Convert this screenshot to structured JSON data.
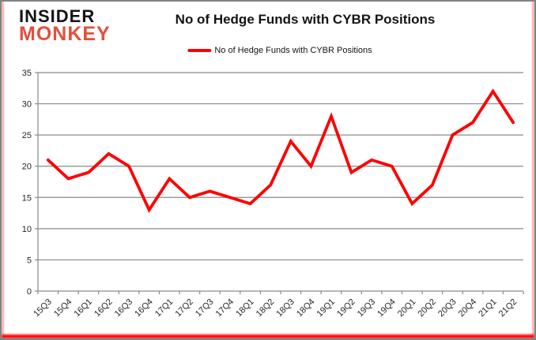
{
  "brand": {
    "line1": "INSIDER",
    "line2": "MONKEY",
    "line2_color": "#e2503c"
  },
  "header": {
    "title": "No of Hedge Funds with CYBR Positions"
  },
  "legend": {
    "label": "No of Hedge Funds with CYBR Positions",
    "color": "#ff0000"
  },
  "chart_data": {
    "type": "line",
    "title": "No of Hedge Funds with CYBR Positions",
    "categories": [
      "15Q3",
      "15Q4",
      "16Q1",
      "16Q2",
      "16Q3",
      "16Q4",
      "17Q1",
      "17Q2",
      "17Q3",
      "17Q4",
      "18Q1",
      "18Q2",
      "18Q3",
      "18Q4",
      "19Q1",
      "19Q2",
      "19Q3",
      "19Q4",
      "20Q1",
      "20Q2",
      "20Q3",
      "20Q4",
      "21Q1",
      "21Q2"
    ],
    "series": [
      {
        "name": "No of Hedge Funds with CYBR Positions",
        "color": "#ff0000",
        "values": [
          21,
          18,
          19,
          22,
          20,
          13,
          18,
          15,
          16,
          15,
          14,
          17,
          24,
          20,
          28,
          19,
          21,
          20,
          14,
          17,
          25,
          27,
          32,
          27
        ]
      }
    ],
    "ylim": [
      0,
      35
    ],
    "yticks": [
      0,
      5,
      10,
      15,
      20,
      25,
      30,
      35
    ],
    "xlabel": "",
    "ylabel": "",
    "grid": "horizontal",
    "grid_color": "#8a8a8a",
    "text_color": "#262626",
    "legend_position": "top-center"
  }
}
